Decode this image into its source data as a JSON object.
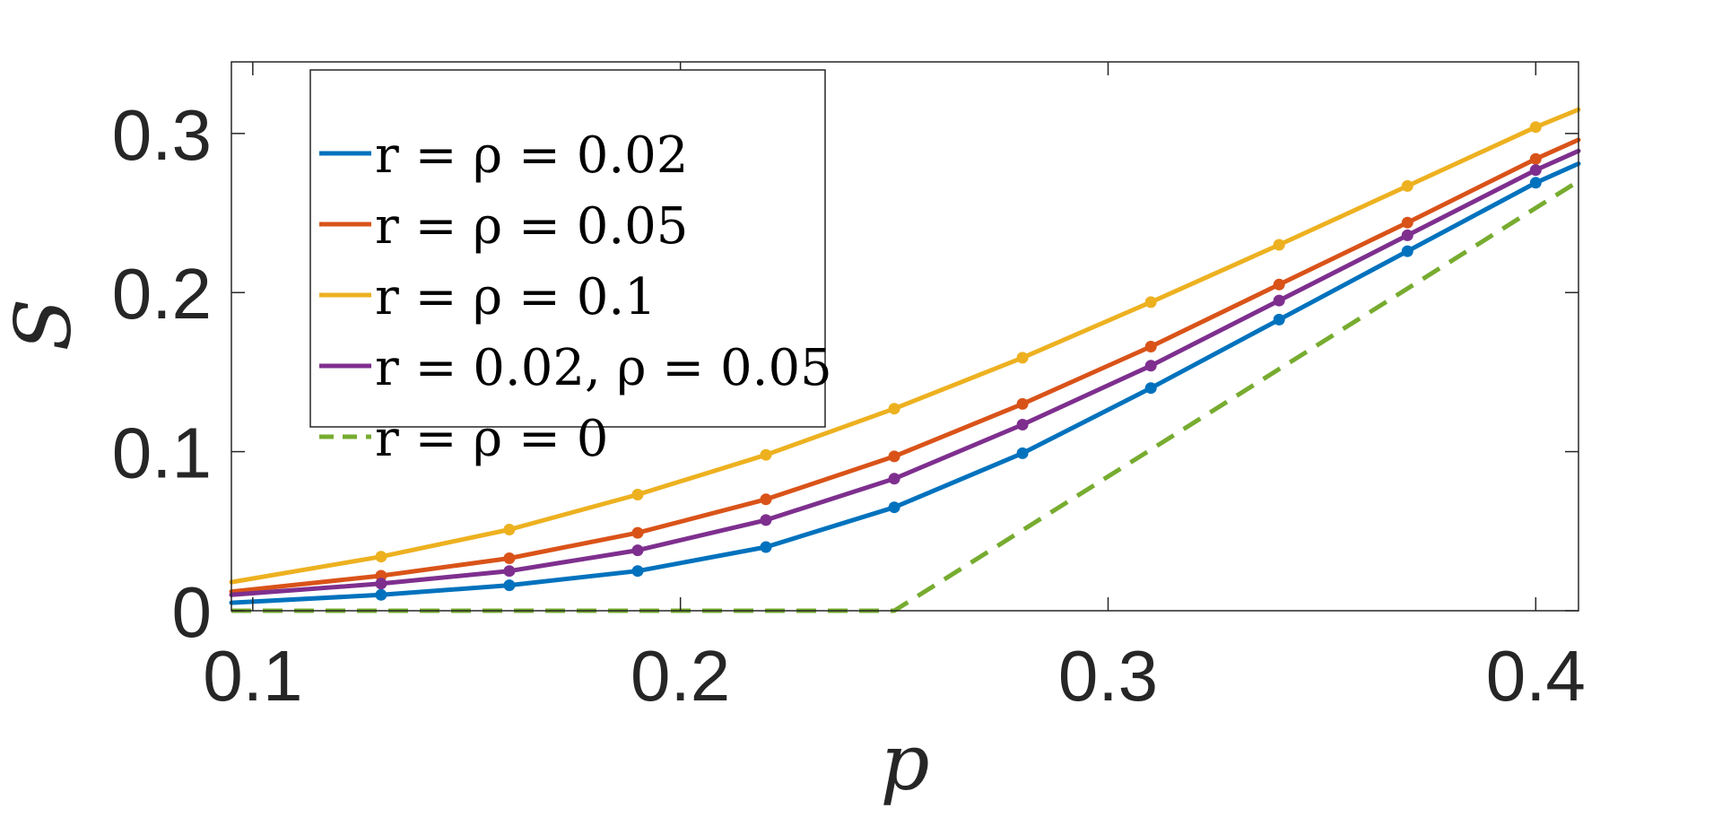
{
  "chart_data": {
    "type": "line",
    "xlabel": "p",
    "ylabel": "S",
    "xlim": [
      0.095,
      0.41
    ],
    "ylim": [
      0,
      0.345
    ],
    "xticks": [
      0.1,
      0.2,
      0.3,
      0.4
    ],
    "xtick_labels": [
      "0.1",
      "0.2",
      "0.3",
      "0.4"
    ],
    "yticks": [
      0,
      0.1,
      0.2,
      0.3
    ],
    "ytick_labels": [
      "0",
      "0.1",
      "0.2",
      "0.3"
    ],
    "grid": false,
    "legend_position": "top-left",
    "series": [
      {
        "name": "r = ρ = 0.02",
        "color": "#0072BD",
        "style": "solid",
        "markers": true,
        "x": [
          0.095,
          0.13,
          0.16,
          0.19,
          0.22,
          0.25,
          0.28,
          0.31,
          0.34,
          0.37,
          0.4,
          0.41
        ],
        "y": [
          0.005,
          0.01,
          0.016,
          0.025,
          0.04,
          0.065,
          0.099,
          0.14,
          0.183,
          0.226,
          0.269,
          0.281
        ]
      },
      {
        "name": "r = ρ = 0.05",
        "color": "#D95319",
        "style": "solid",
        "markers": true,
        "x": [
          0.095,
          0.13,
          0.16,
          0.19,
          0.22,
          0.25,
          0.28,
          0.31,
          0.34,
          0.37,
          0.4,
          0.41
        ],
        "y": [
          0.012,
          0.022,
          0.033,
          0.049,
          0.07,
          0.097,
          0.13,
          0.166,
          0.205,
          0.244,
          0.284,
          0.296
        ]
      },
      {
        "name": "r = ρ = 0.1",
        "color": "#EDB120",
        "style": "solid",
        "markers": true,
        "x": [
          0.095,
          0.13,
          0.16,
          0.19,
          0.22,
          0.25,
          0.28,
          0.31,
          0.34,
          0.37,
          0.4,
          0.41
        ],
        "y": [
          0.018,
          0.034,
          0.051,
          0.073,
          0.098,
          0.127,
          0.159,
          0.194,
          0.23,
          0.267,
          0.304,
          0.315
        ]
      },
      {
        "name": "r = 0.02, ρ = 0.05",
        "color": "#7E2F8E",
        "style": "solid",
        "markers": true,
        "x": [
          0.095,
          0.13,
          0.16,
          0.19,
          0.22,
          0.25,
          0.28,
          0.31,
          0.34,
          0.37,
          0.4,
          0.41
        ],
        "y": [
          0.01,
          0.017,
          0.025,
          0.038,
          0.057,
          0.083,
          0.117,
          0.154,
          0.195,
          0.236,
          0.277,
          0.289
        ]
      },
      {
        "name": "r = ρ = 0",
        "color": "#77AC30",
        "style": "dashed",
        "markers": false,
        "x": [
          0.095,
          0.25,
          0.41
        ],
        "y": [
          0,
          0,
          0.27
        ]
      }
    ]
  }
}
